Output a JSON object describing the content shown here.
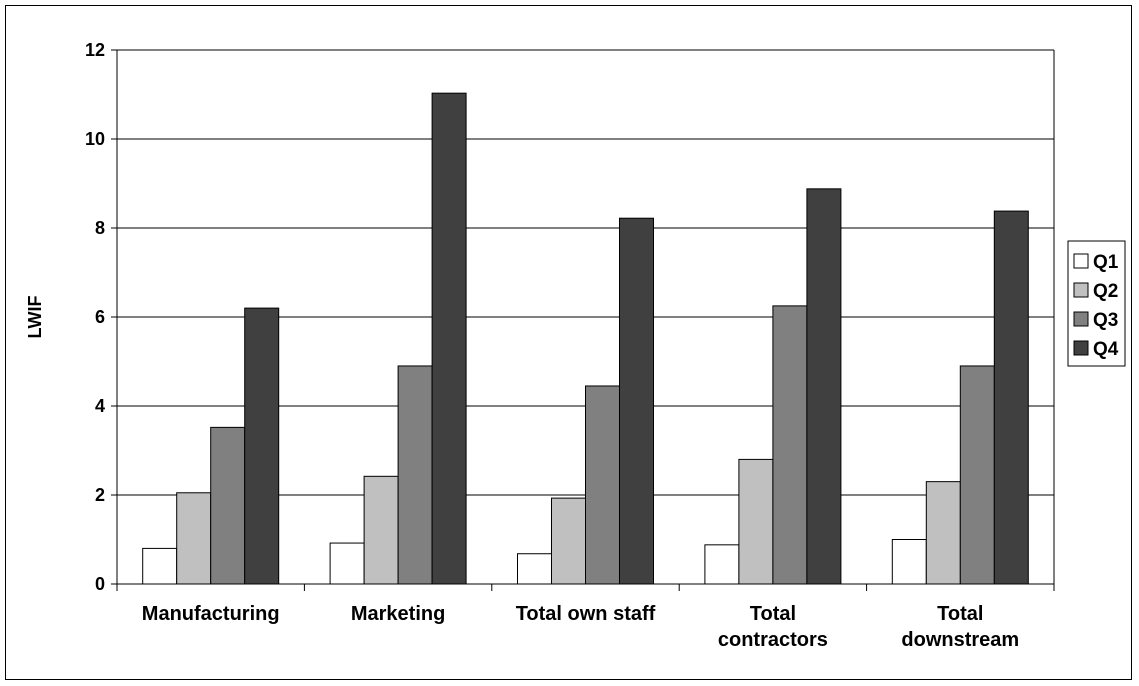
{
  "chart_data": {
    "type": "bar",
    "title": "",
    "xlabel": "",
    "ylabel": "LWIF",
    "ylim": [
      0,
      12
    ],
    "yticks": [
      0,
      2,
      4,
      6,
      8,
      10,
      12
    ],
    "grid": true,
    "legend_position": "right",
    "categories": [
      [
        "Manufacturing"
      ],
      [
        "Marketing"
      ],
      [
        "Total own staff"
      ],
      [
        "Total",
        "contractors"
      ],
      [
        "Total",
        "downstream"
      ]
    ],
    "series": [
      {
        "name": "Q1",
        "color": "#ffffff",
        "values": [
          0.8,
          0.92,
          0.68,
          0.88,
          1.0
        ]
      },
      {
        "name": "Q2",
        "color": "#c0c0c0",
        "values": [
          2.05,
          2.42,
          1.93,
          2.8,
          2.3
        ]
      },
      {
        "name": "Q3",
        "color": "#808080",
        "values": [
          3.52,
          4.9,
          4.45,
          6.25,
          4.9
        ]
      },
      {
        "name": "Q4",
        "color": "#404040",
        "values": [
          6.2,
          11.03,
          8.22,
          8.88,
          8.38
        ]
      }
    ]
  }
}
